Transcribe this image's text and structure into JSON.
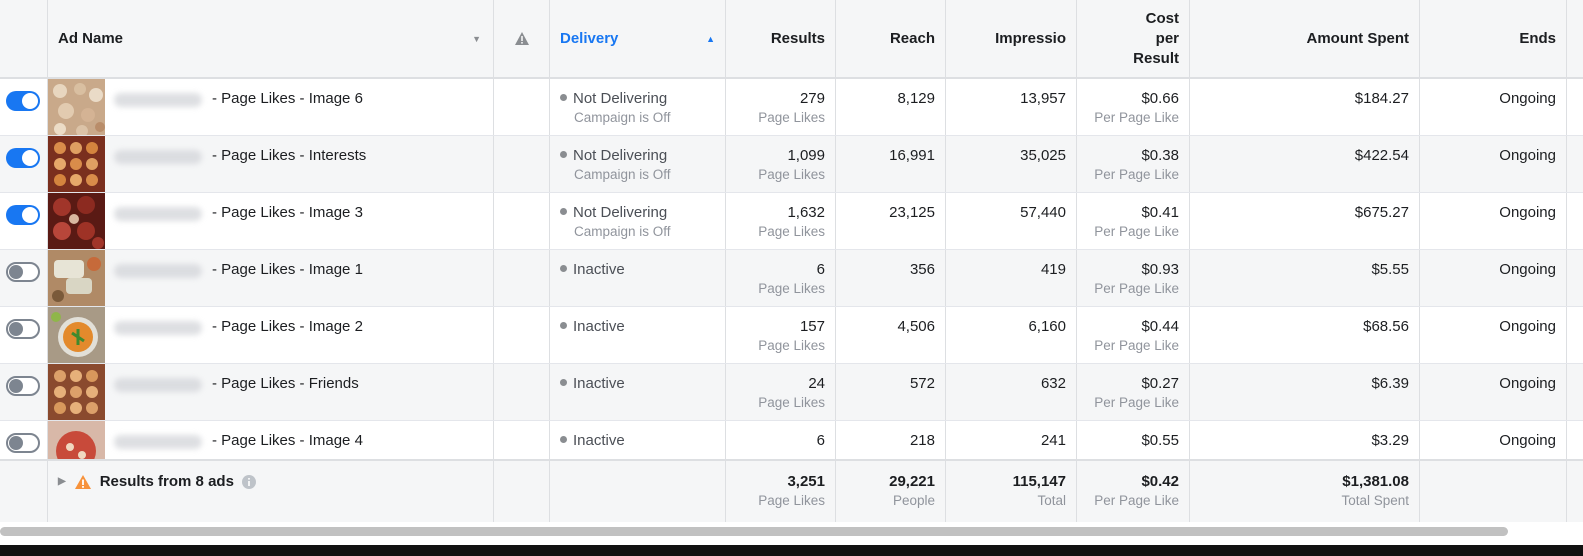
{
  "header": {
    "ad_name": "Ad Name",
    "delivery": "Delivery",
    "results": "Results",
    "reach": "Reach",
    "impressions": "Impressio",
    "cost_per_result_1": "Cost",
    "cost_per_result_2": "per",
    "cost_per_result_3": "Result",
    "amount_spent": "Amount Spent",
    "ends": "Ends"
  },
  "rows": [
    {
      "toggle": "on",
      "name": "- Page Likes - Image 6",
      "delivery": "Not Delivering",
      "delivery_sub": "Campaign is Off",
      "results": "279",
      "results_sub": "Page Likes",
      "reach": "8,129",
      "impressions": "13,957",
      "cpr": "$0.66",
      "cpr_sub": "Per Page Like",
      "spent": "$184.27",
      "ends": "Ongoing"
    },
    {
      "toggle": "on",
      "name": "- Page Likes - Interests",
      "delivery": "Not Delivering",
      "delivery_sub": "Campaign is Off",
      "results": "1,099",
      "results_sub": "Page Likes",
      "reach": "16,991",
      "impressions": "35,025",
      "cpr": "$0.38",
      "cpr_sub": "Per Page Like",
      "spent": "$422.54",
      "ends": "Ongoing"
    },
    {
      "toggle": "on",
      "name": "- Page Likes - Image 3",
      "delivery": "Not Delivering",
      "delivery_sub": "Campaign is Off",
      "results": "1,632",
      "results_sub": "Page Likes",
      "reach": "23,125",
      "impressions": "57,440",
      "cpr": "$0.41",
      "cpr_sub": "Per Page Like",
      "spent": "$675.27",
      "ends": "Ongoing"
    },
    {
      "toggle": "off",
      "name": "- Page Likes - Image 1",
      "delivery": "Inactive",
      "delivery_sub": "",
      "results": "6",
      "results_sub": "Page Likes",
      "reach": "356",
      "impressions": "419",
      "cpr": "$0.93",
      "cpr_sub": "Per Page Like",
      "spent": "$5.55",
      "ends": "Ongoing"
    },
    {
      "toggle": "off",
      "name": "- Page Likes - Image 2",
      "delivery": "Inactive",
      "delivery_sub": "",
      "results": "157",
      "results_sub": "Page Likes",
      "reach": "4,506",
      "impressions": "6,160",
      "cpr": "$0.44",
      "cpr_sub": "Per Page Like",
      "spent": "$68.56",
      "ends": "Ongoing"
    },
    {
      "toggle": "off",
      "name": "- Page Likes - Friends",
      "delivery": "Inactive",
      "delivery_sub": "",
      "results": "24",
      "results_sub": "Page Likes",
      "reach": "572",
      "impressions": "632",
      "cpr": "$0.27",
      "cpr_sub": "Per Page Like",
      "spent": "$6.39",
      "ends": "Ongoing"
    },
    {
      "toggle": "off",
      "name": "- Page Likes - Image 4",
      "delivery": "Inactive",
      "delivery_sub": "",
      "results": "6",
      "results_sub": "",
      "reach": "218",
      "impressions": "241",
      "cpr": "$0.55",
      "cpr_sub": "",
      "spent": "$3.29",
      "ends": "Ongoing"
    }
  ],
  "footer": {
    "label": "Results from 8 ads",
    "results": "3,251",
    "results_sub": "Page Likes",
    "reach": "29,221",
    "reach_sub": "People",
    "impressions": "115,147",
    "impressions_sub": "Total",
    "cpr": "$0.42",
    "cpr_sub": "Per Page Like",
    "spent": "$1,381.08",
    "spent_sub": "Total Spent"
  },
  "colors": {
    "accent": "#1877f2",
    "warning": "#f7923b"
  },
  "icons": {
    "sort": "sort-asc-icon",
    "warning": "warning-icon",
    "info": "info-icon",
    "expand": "expand-caret-icon"
  }
}
